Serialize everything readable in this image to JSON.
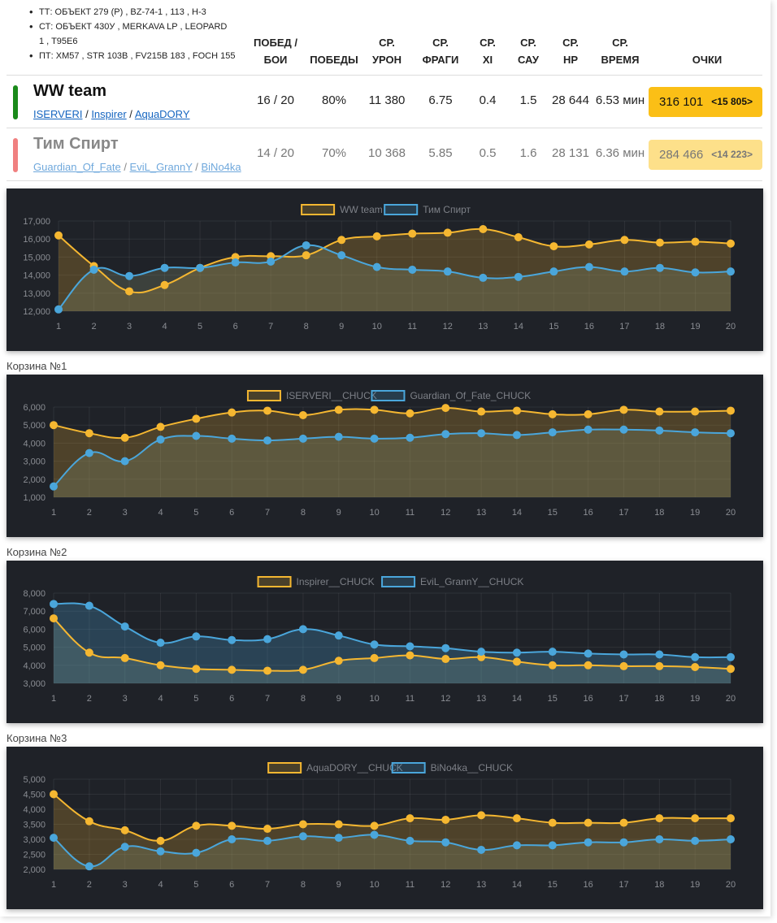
{
  "vehicles": [
    "ТТ: ОБЪЕКТ 279 (Р) , BZ-74-1 , 113 , Н-3",
    "СТ: ОБЪЕКТ 430У , MERKAVA LP , LEOPARD 1 , T95E6",
    "ПТ: XM57 , STR 103B , FV215B 183 , FOCH 155"
  ],
  "columns": {
    "battles": [
      "ПОБЕД /",
      "БОИ"
    ],
    "wins": "ПОБЕДЫ",
    "damage": [
      "СР.",
      "УРОН"
    ],
    "frags": [
      "СР.",
      "ФРАГИ"
    ],
    "xi": [
      "СР.",
      "XI"
    ],
    "arty": [
      "СР.",
      "САУ"
    ],
    "hp": [
      "СР.",
      "НР"
    ],
    "time": [
      "СР.",
      "ВРЕМЯ"
    ],
    "points": "ОЧКИ"
  },
  "teams": [
    {
      "name": "WW team",
      "color": "#1a8a1a",
      "players": [
        "ISERVERI",
        "Inspirer",
        "AquaDORY"
      ],
      "battles": "16 / 20",
      "wins": "80%",
      "damage": "11 380",
      "frags": "6.75",
      "xi": "0.4",
      "arty": "1.5",
      "hp": "28 644",
      "time": "6.53 мин",
      "points": "316 101",
      "diff": "<15 805>",
      "score_bg": "#fbbf16"
    },
    {
      "name": "Тим Спирт",
      "color": "#f08080",
      "players": [
        "Guardian_Of_Fate",
        "EviL_GrannY",
        "BiNo4ka"
      ],
      "battles": "14 / 20",
      "wins": "70%",
      "damage": "10 368",
      "frags": "5.85",
      "xi": "0.5",
      "arty": "1.6",
      "hp": "28 131",
      "time": "6.36 мин",
      "points": "284 466",
      "diff": "<14 223>",
      "score_bg": "#fde08a"
    }
  ],
  "basket_labels": [
    "Корзина №1",
    "Корзина №2",
    "Корзина №3"
  ],
  "colors": {
    "orange": "#f5b731",
    "blue": "#4aa6db",
    "panel": "#1f2228"
  },
  "chart_data": [
    {
      "type": "area",
      "x": [
        1,
        2,
        3,
        4,
        5,
        6,
        7,
        8,
        9,
        10,
        11,
        12,
        13,
        14,
        15,
        16,
        17,
        18,
        19,
        20
      ],
      "ylim": [
        12000,
        17000
      ],
      "yticks": [
        12000,
        13000,
        14000,
        15000,
        16000,
        17000
      ],
      "ytick_labels": [
        "12,000",
        "13,000",
        "14,000",
        "15,000",
        "16,000",
        "17,000"
      ],
      "series": [
        {
          "name": "WW team",
          "values": [
            16200,
            14500,
            13100,
            13450,
            14400,
            15000,
            15050,
            15100,
            15950,
            16150,
            16300,
            16350,
            16550,
            16100,
            15600,
            15700,
            15950,
            15800,
            15850,
            15750
          ]
        },
        {
          "name": "Тим Спирт",
          "values": [
            12100,
            14300,
            13950,
            14400,
            14400,
            14700,
            14750,
            15650,
            15100,
            14450,
            14300,
            14200,
            13850,
            13900,
            14200,
            14450,
            14200,
            14400,
            14150,
            14200
          ]
        }
      ]
    },
    {
      "type": "area",
      "x": [
        1,
        2,
        3,
        4,
        5,
        6,
        7,
        8,
        9,
        10,
        11,
        12,
        13,
        14,
        15,
        16,
        17,
        18,
        19,
        20
      ],
      "ylim": [
        1000,
        6000
      ],
      "yticks": [
        1000,
        2000,
        3000,
        4000,
        5000,
        6000
      ],
      "ytick_labels": [
        "1,000",
        "2,000",
        "3,000",
        "4,000",
        "5,000",
        "6,000"
      ],
      "series": [
        {
          "name": "ISERVERI__CHUCK",
          "values": [
            5000,
            4550,
            4300,
            4900,
            5350,
            5700,
            5800,
            5550,
            5850,
            5850,
            5650,
            5950,
            5750,
            5800,
            5600,
            5600,
            5850,
            5750,
            5750,
            5800
          ]
        },
        {
          "name": "Guardian_Of_Fate_CHUCK",
          "values": [
            1600,
            3450,
            3000,
            4200,
            4400,
            4250,
            4150,
            4250,
            4350,
            4250,
            4300,
            4500,
            4550,
            4450,
            4600,
            4750,
            4750,
            4700,
            4600,
            4550
          ]
        }
      ]
    },
    {
      "type": "area",
      "x": [
        1,
        2,
        3,
        4,
        5,
        6,
        7,
        8,
        9,
        10,
        11,
        12,
        13,
        14,
        15,
        16,
        17,
        18,
        19,
        20
      ],
      "ylim": [
        3000,
        8000
      ],
      "yticks": [
        3000,
        4000,
        5000,
        6000,
        7000,
        8000
      ],
      "ytick_labels": [
        "3,000",
        "4,000",
        "5,000",
        "6,000",
        "7,000",
        "8,000"
      ],
      "series": [
        {
          "name": "Inspirer__CHUCK",
          "values": [
            6600,
            4700,
            4400,
            4000,
            3800,
            3750,
            3700,
            3750,
            4250,
            4400,
            4550,
            4350,
            4450,
            4200,
            4000,
            4000,
            3950,
            3950,
            3900,
            3800
          ]
        },
        {
          "name": "EviL_GrannY__CHUCK",
          "values": [
            7400,
            7300,
            6150,
            5250,
            5600,
            5400,
            5450,
            6000,
            5650,
            5150,
            5050,
            4950,
            4750,
            4700,
            4750,
            4650,
            4600,
            4600,
            4450,
            4450
          ]
        }
      ]
    },
    {
      "type": "area",
      "x": [
        1,
        2,
        3,
        4,
        5,
        6,
        7,
        8,
        9,
        10,
        11,
        12,
        13,
        14,
        15,
        16,
        17,
        18,
        19,
        20
      ],
      "ylim": [
        2000,
        5000
      ],
      "yticks": [
        2000,
        2500,
        3000,
        3500,
        4000,
        4500,
        5000
      ],
      "ytick_labels": [
        "2,000",
        "2,500",
        "3,000",
        "3,500",
        "4,000",
        "4,500",
        "5,000"
      ],
      "series": [
        {
          "name": "AquaDORY__CHUCK",
          "values": [
            4500,
            3600,
            3300,
            2950,
            3450,
            3450,
            3350,
            3500,
            3500,
            3450,
            3700,
            3650,
            3800,
            3700,
            3550,
            3550,
            3550,
            3700,
            3700,
            3700
          ]
        },
        {
          "name": "BiNo4ka__CHUCK",
          "values": [
            3050,
            2100,
            2750,
            2600,
            2550,
            3000,
            2950,
            3100,
            3050,
            3150,
            2950,
            2900,
            2650,
            2800,
            2800,
            2900,
            2900,
            3000,
            2950,
            3000
          ]
        }
      ]
    }
  ]
}
